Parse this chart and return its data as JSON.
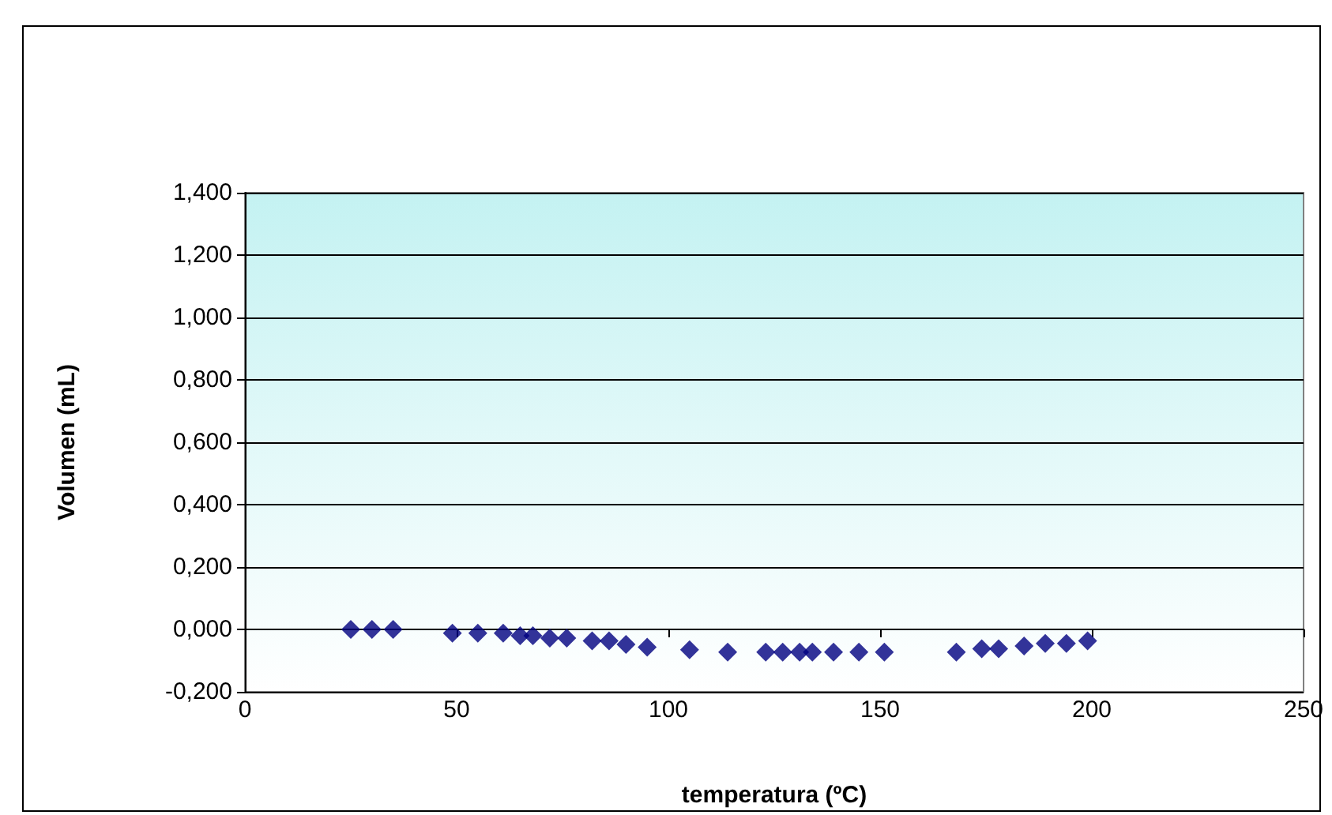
{
  "chart_data": {
    "type": "scatter",
    "xlabel": "temperatura (ºC)",
    "ylabel": "Volumen (mL)",
    "x": [
      25,
      30,
      35,
      49,
      55,
      61,
      65,
      68,
      72,
      76,
      82,
      86,
      90,
      95,
      105,
      114,
      123,
      127,
      131,
      134,
      139,
      145,
      151,
      168,
      174,
      178,
      184,
      189,
      194,
      199
    ],
    "series": [
      {
        "color": "#000080",
        "values": [
          0,
          0,
          0,
          -0.012,
          -0.012,
          -0.012,
          -0.02,
          -0.02,
          -0.028,
          -0.028,
          -0.037,
          -0.037,
          -0.048,
          -0.057,
          -0.065,
          -0.073,
          -0.073,
          -0.073,
          -0.073,
          -0.073,
          -0.073,
          -0.073,
          -0.073,
          -0.073,
          -0.062,
          -0.062,
          -0.053,
          -0.045,
          -0.045,
          -0.037
        ]
      }
    ],
    "xlim": [
      0,
      250
    ],
    "xticks": [
      0,
      50,
      100,
      150,
      200,
      250
    ],
    "ylim": [
      -0.2,
      1.4
    ],
    "yticks": [
      {
        "value": -0.2,
        "label": "-0,200"
      },
      {
        "value": 0,
        "label": "0,000"
      },
      {
        "value": 0.2,
        "label": "0,200"
      },
      {
        "value": 0.4,
        "label": "0,400"
      },
      {
        "value": 0.6,
        "label": "0,600"
      },
      {
        "value": 0.8,
        "label": "0,800"
      },
      {
        "value": 1.0,
        "label": "1,000"
      },
      {
        "value": 1.2,
        "label": "1,200"
      },
      {
        "value": 1.4,
        "label": "1,400"
      }
    ],
    "grid": "y",
    "marker": "diamond"
  }
}
